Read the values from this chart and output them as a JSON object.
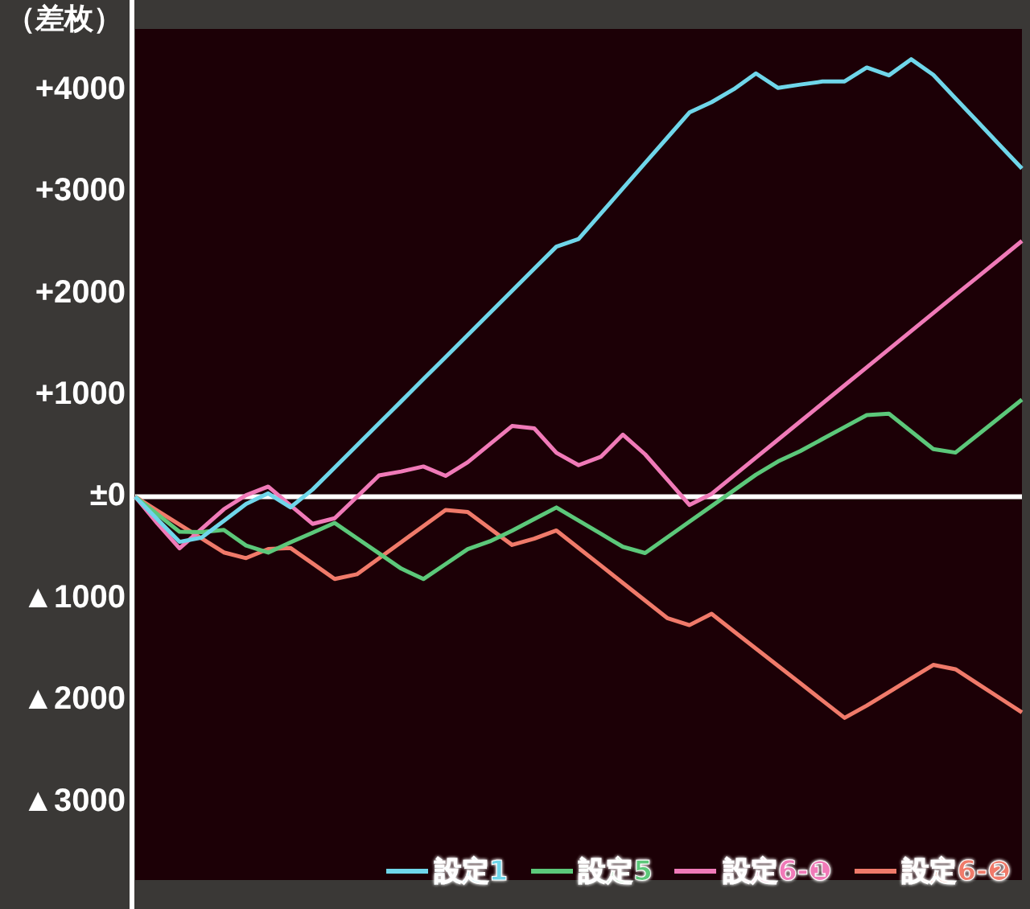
{
  "chart_data": {
    "type": "line",
    "ylabel": "（差枚）",
    "ylim": [
      -3770,
      4600
    ],
    "categories": [
      null,
      null,
      null,
      null,
      null,
      null,
      null,
      null,
      null,
      null,
      null,
      null,
      null,
      null,
      null,
      null,
      null,
      null,
      null,
      null,
      null,
      null,
      null,
      null,
      null,
      null,
      null,
      null,
      null,
      null,
      null,
      null,
      null,
      null,
      null,
      null,
      null,
      null,
      null,
      null,
      null
    ],
    "yticks": [
      {
        "value": 4000,
        "label": "+4000"
      },
      {
        "value": 3000,
        "label": "+3000"
      },
      {
        "value": 2000,
        "label": "+2000"
      },
      {
        "value": 1000,
        "label": "+1000"
      },
      {
        "value": 0,
        "label": "±0"
      },
      {
        "value": -1000,
        "label": "▲1000"
      },
      {
        "value": -2000,
        "label": "▲2000"
      },
      {
        "value": -3000,
        "label": "▲3000"
      }
    ],
    "tick_labels": "y",
    "grid": false,
    "legend": "bottom right",
    "marker": "none",
    "line_style": "solid",
    "ref_lines": [
      {
        "axis": "y",
        "value": 0,
        "color": "#ffffff"
      }
    ],
    "series": [
      {
        "name": "設定1",
        "color": "#6fd6ea",
        "values": [
          0,
          -222,
          -444,
          -402,
          -237,
          -71,
          33,
          -105,
          70,
          287,
          504,
          721,
          938,
          1156,
          1373,
          1590,
          1807,
          2025,
          2242,
          2459,
          2534,
          2783,
          3032,
          3281,
          3530,
          3779,
          3880,
          4007,
          4163,
          4020,
          4053,
          4083,
          4084,
          4221,
          4144,
          4302,
          4149,
          3918,
          3688,
          3457,
          3227
        ]
      },
      {
        "name": "設定5",
        "color": "#5cc87a",
        "values": [
          0,
          -172,
          -345,
          -348,
          -327,
          -480,
          -550,
          -450,
          -354,
          -258,
          -408,
          -557,
          -707,
          -810,
          -663,
          -516,
          -439,
          -334,
          -220,
          -106,
          -235,
          -364,
          -493,
          -554,
          -400,
          -246,
          -92,
          62,
          216,
          347,
          449,
          567,
          685,
          803,
          816,
          642,
          468,
          434,
          607,
          781,
          955
        ]
      },
      {
        "name": "設定6-❶",
        "color": "#f07ab8",
        "values": [
          0,
          -263,
          -507,
          -315,
          -123,
          15,
          99,
          -84,
          -267,
          -212,
          -2,
          209,
          248,
          297,
          205,
          339,
          517,
          695,
          672,
          432,
          310,
          392,
          610,
          417,
          168,
          -81,
          28,
          206,
          384,
          561,
          739,
          917,
          1095,
          1272,
          1450,
          1628,
          1806,
          1984,
          2160,
          2337,
          2515
        ]
      },
      {
        "name": "設定6-❷",
        "color": "#f07a6a",
        "values": [
          0,
          -137,
          -274,
          -411,
          -548,
          -604,
          -515,
          -504,
          -656,
          -809,
          -763,
          -605,
          -447,
          -289,
          -131,
          -151,
          -313,
          -474,
          -413,
          -332,
          -504,
          -676,
          -849,
          -1021,
          -1193,
          -1263,
          -1152,
          -1323,
          -1493,
          -1664,
          -1834,
          -2005,
          -2175,
          -2054,
          -1921,
          -1788,
          -1654,
          -1697,
          -1838,
          -1980,
          -2121
        ]
      }
    ]
  }
}
